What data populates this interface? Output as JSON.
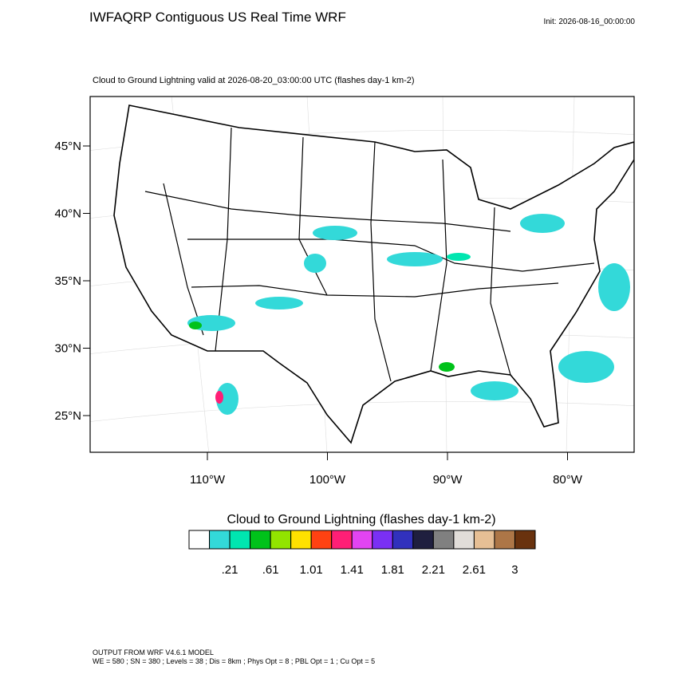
{
  "header": {
    "title": "IWFAQRP Contiguous US Real Time WRF",
    "init": "Init: 2026-08-16_00:00:00",
    "subtitle": "Cloud to Ground Lightning valid at 2026-08-20_03:00:00 UTC   (flashes day-1 km-2)"
  },
  "map": {
    "lat_labels": [
      "45°N",
      "40°N",
      "35°N",
      "30°N",
      "25°N"
    ],
    "lon_labels": [
      "110°W",
      "100°W",
      "90°W",
      "80°W"
    ]
  },
  "colorbar": {
    "title": "Cloud to Ground Lightning  (flashes day-1 km-2)",
    "colors": [
      "#ffffff",
      "#33d9d9",
      "#00e6b0",
      "#00c21a",
      "#92e400",
      "#ffe100",
      "#ff4212",
      "#ff1f76",
      "#e244f2",
      "#7a30f4",
      "#3131bd",
      "#1f1f3f",
      "#808080",
      "#e1ddd9",
      "#e6bf95",
      "#ad7647",
      "#69320e"
    ],
    "labels": [
      ".21",
      ".61",
      "1.01",
      "1.41",
      "1.81",
      "2.21",
      "2.61",
      "3"
    ]
  },
  "footer": {
    "line1": "OUTPUT FROM WRF V4.6.1 MODEL",
    "line2": "WE = 580 ; SN = 380 ; Levels = 38 ; Dis = 8km ; Phys Opt = 8 ; PBL Opt = 1 ; Cu Opt = 5"
  }
}
